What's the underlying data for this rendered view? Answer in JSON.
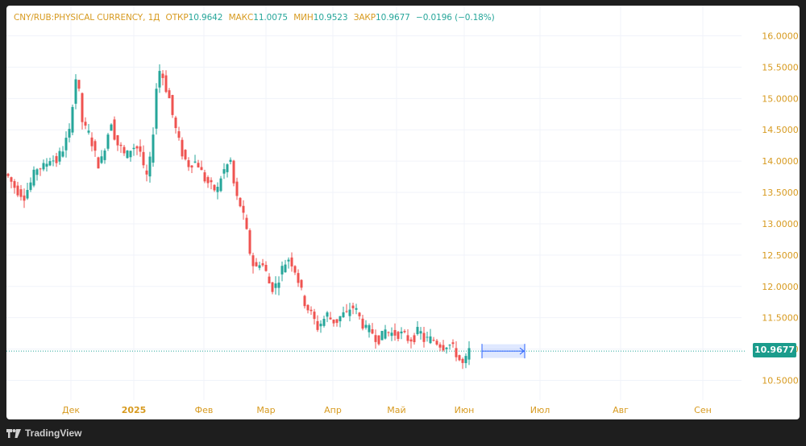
{
  "legend": {
    "symbol": "CNY/RUB:PHYSICAL CURRENCY, 1Д",
    "open_label": "ОТКР",
    "open_value": "10.9642",
    "high_label": "МАКС",
    "high_value": "11.0075",
    "low_label": "МИН",
    "low_value": "10.9523",
    "close_label": "ЗАКР",
    "close_value": "10.9677",
    "change": "−0.0196 (−0.18%)"
  },
  "last_price_badge": "10.9677",
  "brand": "TradingView",
  "chart_data": {
    "type": "candlestick",
    "symbol": "CNY/RUB",
    "timeframe": "1Д",
    "y_axis_ticks": [
      "16.0000",
      "15.5000",
      "15.0000",
      "14.5000",
      "14.0000",
      "13.5000",
      "13.0000",
      "12.5000",
      "12.0000",
      "11.5000",
      "11.0000",
      "10.5000"
    ],
    "ylim": [
      10.3,
      16.3
    ],
    "x_axis_ticks": [
      "Дек",
      "2025",
      "Фев",
      "Мар",
      "Апр",
      "Май",
      "Июн",
      "Июл",
      "Авг",
      "Сен"
    ],
    "last_close": 10.9677,
    "grid": true,
    "colors": {
      "up": "#26a69a",
      "down": "#ef5350",
      "grid": "#f0f3fa",
      "axis_text": "#d79a1f",
      "price_line": "#26a69a",
      "projection": "#2962ff"
    },
    "close_path": [
      [
        0,
        13.75
      ],
      [
        5,
        13.55
      ],
      [
        10,
        13.45
      ],
      [
        14,
        13.65
      ],
      [
        18,
        13.9
      ],
      [
        22,
        13.9
      ],
      [
        26,
        14.05
      ],
      [
        30,
        14.0
      ],
      [
        34,
        14.2
      ],
      [
        38,
        14.45
      ],
      [
        41,
        15.2
      ],
      [
        43,
        15.45
      ],
      [
        45,
        14.7
      ],
      [
        48,
        14.5
      ],
      [
        51,
        14.4
      ],
      [
        54,
        14.1
      ],
      [
        57,
        13.9
      ],
      [
        60,
        14.25
      ],
      [
        64,
        14.65
      ],
      [
        67,
        14.3
      ],
      [
        70,
        14.2
      ],
      [
        73,
        14.05
      ],
      [
        76,
        14.2
      ],
      [
        79,
        14.25
      ],
      [
        82,
        14.15
      ],
      [
        84,
        13.85
      ],
      [
        86,
        13.75
      ],
      [
        89,
        14.1
      ],
      [
        91,
        14.9
      ],
      [
        93,
        15.45
      ],
      [
        95,
        15.45
      ],
      [
        97,
        15.25
      ],
      [
        100,
        15.0
      ],
      [
        103,
        14.6
      ],
      [
        106,
        14.3
      ],
      [
        109,
        14.05
      ],
      [
        112,
        13.95
      ],
      [
        115,
        14.0
      ],
      [
        118,
        13.95
      ],
      [
        121,
        13.75
      ],
      [
        124,
        13.65
      ],
      [
        127,
        13.55
      ],
      [
        130,
        13.55
      ],
      [
        132,
        13.75
      ],
      [
        135,
        13.9
      ],
      [
        138,
        14.0
      ],
      [
        141,
        13.45
      ],
      [
        144,
        13.3
      ],
      [
        147,
        13.0
      ],
      [
        150,
        12.55
      ],
      [
        153,
        12.25
      ],
      [
        156,
        12.4
      ],
      [
        159,
        12.3
      ],
      [
        162,
        12.05
      ],
      [
        165,
        11.95
      ],
      [
        168,
        12.15
      ],
      [
        171,
        12.35
      ],
      [
        174,
        12.45
      ],
      [
        177,
        12.35
      ],
      [
        180,
        12.1
      ],
      [
        183,
        11.8
      ],
      [
        186,
        11.65
      ],
      [
        189,
        11.5
      ],
      [
        192,
        11.35
      ],
      [
        195,
        11.45
      ],
      [
        198,
        11.55
      ],
      [
        201,
        11.45
      ],
      [
        204,
        11.45
      ],
      [
        207,
        11.55
      ],
      [
        210,
        11.55
      ],
      [
        213,
        11.7
      ],
      [
        216,
        11.6
      ],
      [
        219,
        11.45
      ],
      [
        222,
        11.3
      ],
      [
        225,
        11.3
      ],
      [
        228,
        11.2
      ],
      [
        231,
        11.15
      ],
      [
        234,
        11.3
      ],
      [
        237,
        11.25
      ],
      [
        240,
        11.25
      ],
      [
        243,
        11.25
      ],
      [
        246,
        11.2
      ],
      [
        249,
        11.15
      ],
      [
        252,
        11.2
      ],
      [
        255,
        11.3
      ],
      [
        258,
        11.15
      ],
      [
        261,
        11.15
      ],
      [
        264,
        11.15
      ],
      [
        267,
        11.1
      ],
      [
        270,
        11.05
      ],
      [
        273,
        11.1
      ],
      [
        276,
        11.0
      ],
      [
        279,
        10.9
      ],
      [
        281,
        10.75
      ],
      [
        283,
        10.75
      ],
      [
        286,
        10.97
      ]
    ]
  }
}
